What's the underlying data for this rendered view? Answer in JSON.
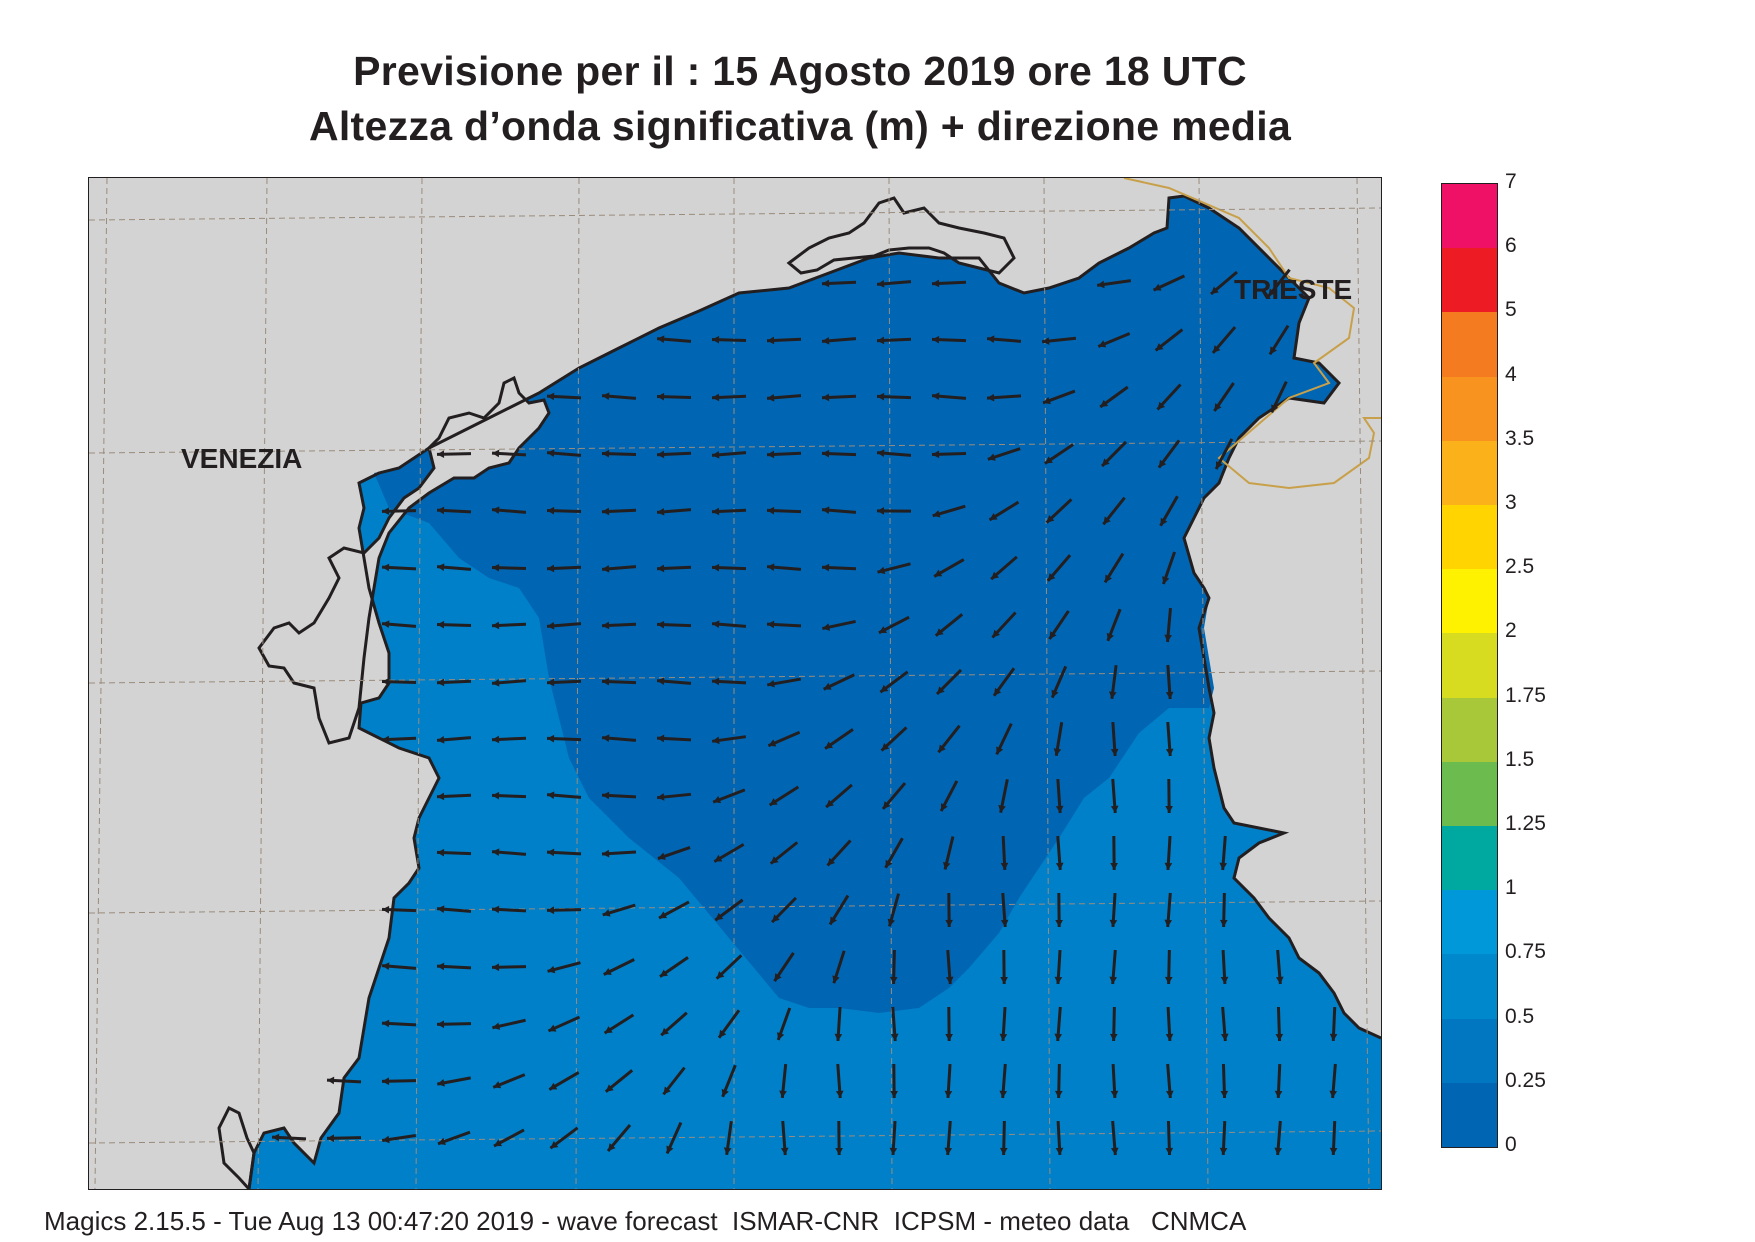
{
  "header": {
    "title_line1": "Previsione per il  :  15   Agosto  2019   ore 18 UTC",
    "title_line2": "Altezza d’onda significativa (m) + direzione media"
  },
  "map": {
    "labels": {
      "venezia": "VENEZIA",
      "trieste": "TRIESTE"
    },
    "colors": {
      "land": "#d3d3d3",
      "sea_band_0_025": "#0066b3",
      "sea_band_025_05": "#0080c8",
      "coastline": "#231f20",
      "border": "#c8a04a",
      "grid": "#9a8c7c",
      "arrow": "#231f20"
    },
    "legend": {
      "bands": [
        {
          "label": "0",
          "color": "#0066b3"
        },
        {
          "label": "0.25",
          "color": "#0077c0"
        },
        {
          "label": "0.5",
          "color": "#0088cc"
        },
        {
          "label": "0.75",
          "color": "#0098d8"
        },
        {
          "label": "1",
          "color": "#00a9a0"
        },
        {
          "label": "1.25",
          "color": "#6cbb4e"
        },
        {
          "label": "1.5",
          "color": "#a8c83a"
        },
        {
          "label": "1.75",
          "color": "#d8dc20"
        },
        {
          "label": "2",
          "color": "#fff200"
        },
        {
          "label": "2.5",
          "color": "#ffd400"
        },
        {
          "label": "3",
          "color": "#fbb119"
        },
        {
          "label": "3.5",
          "color": "#f7931e"
        },
        {
          "label": "4",
          "color": "#f47b20"
        },
        {
          "label": "5",
          "color": "#ed1c24"
        },
        {
          "label": "6",
          "color": "#ee1166"
        }
      ],
      "top_label": "7"
    }
  },
  "footer": {
    "credits": "Magics 2.15.5 - Tue Aug 13 00:47:20 2019 - wave forecast  ISMAR-CNR  ICPSM - meteo data   CNMCA"
  }
}
